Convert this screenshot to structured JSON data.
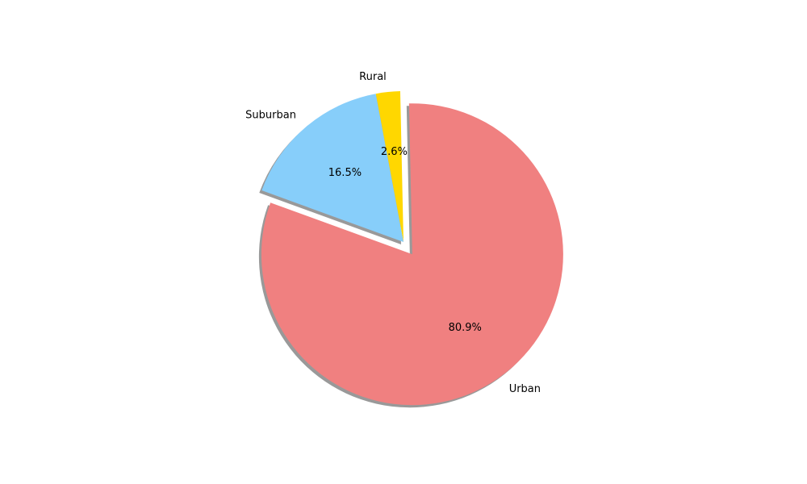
{
  "chart_data": {
    "type": "pie",
    "categories": [
      "Urban",
      "Rural",
      "Suburban"
    ],
    "values": [
      80.9,
      2.6,
      16.5
    ],
    "value_labels": [
      "80.9%",
      "2.6%",
      "16.5%"
    ],
    "colors": [
      "#f08080",
      "#ffd700",
      "#87cefa"
    ],
    "exploded": [
      "Urban"
    ],
    "shadow": true,
    "title": "",
    "legend": "none"
  }
}
